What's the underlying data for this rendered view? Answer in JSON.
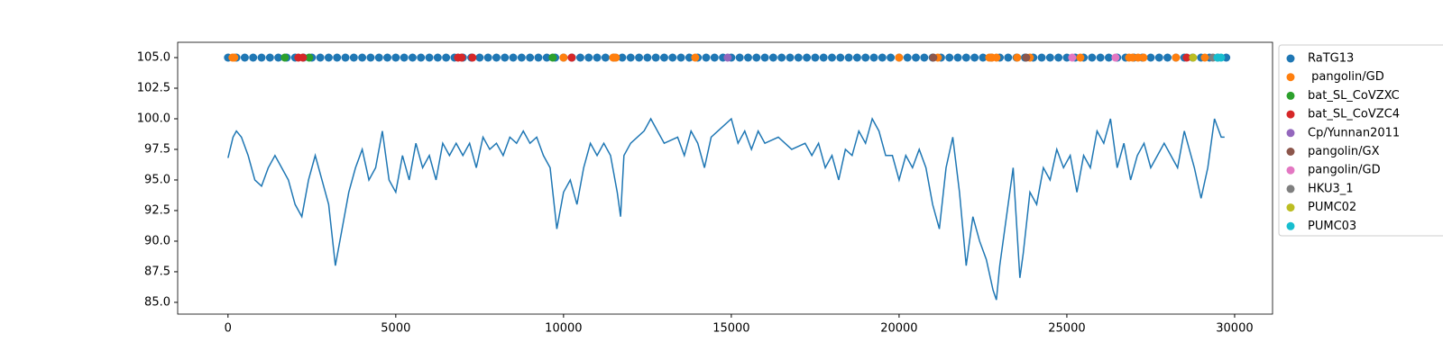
{
  "chart_data": {
    "type": "line",
    "xlim": [
      -1500,
      31130
    ],
    "ylim": [
      84.04,
      106.25
    ],
    "xticks": [
      0,
      5000,
      10000,
      15000,
      20000,
      25000,
      30000
    ],
    "yticks": [
      {
        "value": 85,
        "label": "85.0"
      },
      {
        "value": 87.5,
        "label": "87.5"
      },
      {
        "value": 90,
        "label": "90.0"
      },
      {
        "value": 92.5,
        "label": "92.5"
      },
      {
        "value": 95,
        "label": "95.0"
      },
      {
        "value": 97.5,
        "label": "97.5"
      },
      {
        "value": 100,
        "label": "100.0"
      },
      {
        "value": 102.5,
        "label": "102.5"
      },
      {
        "value": 105,
        "label": "105.0"
      }
    ],
    "grid": false,
    "legend": "outside right",
    "series": [
      {
        "type": "line",
        "color": "#1f77b4",
        "x": [
          0,
          150,
          250,
          400,
          600,
          800,
          1000,
          1200,
          1400,
          1600,
          1800,
          2000,
          2200,
          2400,
          2600,
          2800,
          3000,
          3200,
          3400,
          3600,
          3800,
          4000,
          4200,
          4400,
          4600,
          4800,
          5000,
          5200,
          5400,
          5600,
          5800,
          6000,
          6200,
          6400,
          6600,
          6800,
          7000,
          7200,
          7400,
          7600,
          7800,
          8000,
          8200,
          8400,
          8600,
          8800,
          9000,
          9200,
          9400,
          9600,
          9800,
          10000,
          10200,
          10400,
          10600,
          10800,
          11000,
          11200,
          11400,
          11600,
          11700,
          11800,
          12000,
          12400,
          12600,
          12800,
          13000,
          13400,
          13600,
          13800,
          14000,
          14200,
          14400,
          14600,
          15000,
          15200,
          15400,
          15600,
          15800,
          16000,
          16400,
          16800,
          17200,
          17400,
          17600,
          17800,
          18000,
          18200,
          18400,
          18600,
          18800,
          19000,
          19200,
          19400,
          19600,
          19800,
          20000,
          20200,
          20400,
          20600,
          20800,
          21000,
          21200,
          21400,
          21600,
          21800,
          22000,
          22200,
          22400,
          22600,
          22800,
          22900,
          23000,
          23200,
          23400,
          23600,
          23700,
          23900,
          24100,
          24300,
          24500,
          24700,
          24900,
          25100,
          25300,
          25500,
          25700,
          25900,
          26100,
          26300,
          26500,
          26700,
          26900,
          27100,
          27300,
          27500,
          27700,
          27900,
          28100,
          28300,
          28500,
          28800,
          29000,
          29200,
          29400,
          29600,
          29700
        ],
        "values": [
          96.8,
          98.5,
          99,
          98.5,
          97,
          95,
          94.5,
          96,
          97,
          96,
          95,
          93,
          92,
          95,
          97,
          95,
          93,
          88,
          91,
          94,
          96,
          97.5,
          95,
          96,
          99,
          95,
          94,
          97,
          95,
          98,
          96,
          97,
          95,
          98,
          97,
          98,
          97,
          98,
          96,
          98.5,
          97.5,
          98,
          97,
          98.5,
          98,
          99,
          98,
          98.5,
          97,
          96,
          91,
          94,
          95,
          93,
          96,
          98,
          97,
          98,
          97,
          94,
          92,
          97,
          98,
          99,
          100,
          99,
          98,
          98.5,
          97,
          99,
          98,
          96,
          98.5,
          99,
          100,
          98,
          99,
          97.5,
          99,
          98,
          98.5,
          97.5,
          98,
          97,
          98,
          96,
          97,
          95,
          97.5,
          97,
          99,
          98,
          100,
          99,
          97,
          97,
          95,
          97,
          96,
          97.5,
          96,
          93,
          91,
          96,
          98.5,
          94,
          88,
          92,
          90,
          88.5,
          86,
          85.2,
          88,
          92,
          96,
          87,
          89,
          94,
          93,
          96,
          95,
          97.5,
          96,
          97,
          94,
          97,
          96,
          99,
          98,
          100,
          96,
          98,
          95,
          97,
          98,
          96,
          97,
          98,
          97,
          96,
          99,
          96,
          93.5,
          96,
          100,
          98.5,
          98.5
        ]
      },
      {
        "type": "scatter",
        "name": "RaTG13",
        "color": "#1f77b4",
        "y": 105,
        "x": [
          0,
          250,
          500,
          750,
          1000,
          1250,
          1500,
          1750,
          2000,
          2250,
          2500,
          2750,
          3000,
          3250,
          3500,
          3750,
          4000,
          4250,
          4500,
          4750,
          5000,
          5250,
          5500,
          5750,
          6000,
          6250,
          6500,
          6750,
          7000,
          7250,
          7500,
          7750,
          8000,
          8250,
          8500,
          8750,
          9000,
          9250,
          9500,
          9750,
          10000,
          10250,
          10500,
          10750,
          11000,
          11250,
          11500,
          11750,
          12000,
          12250,
          12500,
          12750,
          13000,
          13250,
          13500,
          13750,
          14000,
          14250,
          14500,
          14750,
          15000,
          15250,
          15500,
          15750,
          16000,
          16250,
          16500,
          16750,
          17000,
          17250,
          17500,
          17750,
          18000,
          18250,
          18500,
          18750,
          19000,
          19250,
          19500,
          19750,
          20000,
          20250,
          20500,
          20750,
          21000,
          21250,
          21500,
          21750,
          22000,
          22250,
          22500,
          22750,
          23000,
          23250,
          23500,
          23750,
          24000,
          24250,
          24500,
          24750,
          25000,
          25250,
          25500,
          25750,
          26000,
          26250,
          26500,
          26750,
          27000,
          27250,
          27500,
          27750,
          28000,
          28250,
          28500,
          28750,
          29000,
          29250,
          29500,
          29750
        ]
      },
      {
        "type": "scatter",
        "name": " pangolin/GD",
        "color": "#ff7f0e",
        "y": 105,
        "x": [
          134,
          188,
          10000,
          11478,
          11559,
          13925,
          20000,
          21155,
          22687,
          22768,
          22902,
          23521,
          23897,
          25402,
          26854,
          26962,
          27123,
          27284,
          28252,
          29112
        ]
      },
      {
        "type": "scatter",
        "name": "bat_SL_CoVZXC",
        "color": "#2ca02c",
        "y": 105,
        "x": [
          1693,
          2419,
          9677
        ]
      },
      {
        "type": "scatter",
        "name": "bat_SL_CoVZC4",
        "color": "#d62728",
        "y": 105,
        "x": [
          2097,
          2231,
          6854,
          6962,
          7285,
          10241,
          28573
        ]
      },
      {
        "type": "scatter",
        "name": "Cp/Yunnan2011",
        "color": "#9467bd",
        "y": 105,
        "x": [
          14892
        ]
      },
      {
        "type": "scatter",
        "name": "pangolin/GX",
        "color": "#8c564b",
        "y": 105,
        "x": [
          21020,
          23789
        ]
      },
      {
        "type": "scatter",
        "name": "pangolin/GD",
        "color": "#e377c2",
        "y": 105,
        "x": [
          25160,
          26451
        ]
      },
      {
        "type": "scatter",
        "name": "HKU3_1",
        "color": "#7f7f7f",
        "y": 105,
        "x": [
          29353
        ]
      },
      {
        "type": "scatter",
        "name": "PUMC02",
        "color": "#bcbd22",
        "y": 105,
        "x": [
          28762
        ]
      },
      {
        "type": "scatter",
        "name": "PUMC03",
        "color": "#17becf",
        "y": 105,
        "x": [
          29488,
          29595
        ]
      }
    ]
  }
}
